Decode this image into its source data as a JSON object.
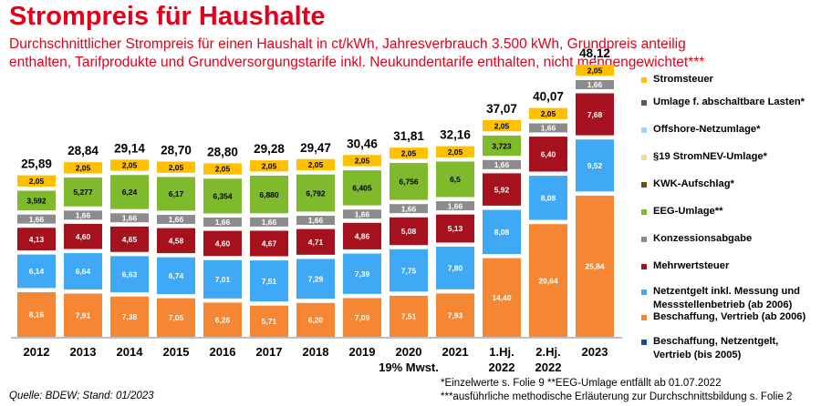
{
  "title": "Strompreis für Haushalte",
  "subtitle_line1": "Durchschnittlicher Strompreis für einen Haushalt in ct/kWh, Jahresverbrauch 3.500 kWh, Grundpreis anteilig",
  "subtitle_line2": "enthalten, Tarifprodukte und Grundversorgungstarife inkl. Neukundentarife enthalten, nicht mengengewichtet***",
  "source": "Quelle: BDEW; Stand: 01/2023",
  "footnote1": "*Einzelwerte s. Folie 9  **EEG-Umlage entfällt ab 01.07.2022",
  "footnote2": "***ausführliche methodische Erläuterung zur Durchschnittsbildung s. Folie 2",
  "chart_data": {
    "type": "bar",
    "stacked": true,
    "unit": "ct/kWh",
    "categories": [
      [
        "2012"
      ],
      [
        "2013"
      ],
      [
        "2014"
      ],
      [
        "2015"
      ],
      [
        "2016"
      ],
      [
        "2017"
      ],
      [
        "2018"
      ],
      [
        "2019"
      ],
      [
        "2020",
        "19% Mwst."
      ],
      [
        "2021"
      ],
      [
        "1.Hj.",
        "2022"
      ],
      [
        "2.Hj.",
        "2022"
      ],
      [
        "2023"
      ]
    ],
    "totals": [
      "25,89",
      "28,84",
      "29,14",
      "28,70",
      "28,80",
      "29,28",
      "29,47",
      "30,46",
      "31,81",
      "32,16",
      "37,07",
      "40,07",
      "48,12"
    ],
    "series": [
      {
        "key": "beschaffung_bis_2005",
        "name": "Beschaffung, Netzentgelt, Vertrieb (bis 2005)",
        "color": "#1f4e8c",
        "values": [
          null,
          null,
          null,
          null,
          null,
          null,
          null,
          null,
          null,
          null,
          null,
          null,
          null
        ]
      },
      {
        "key": "beschaffung",
        "name": "Beschaffung, Vertrieb (ab 2006)",
        "color": "#f58634",
        "text_color": "#ffffff",
        "values": [
          8.16,
          7.91,
          7.38,
          7.05,
          6.26,
          5.71,
          6.2,
          7.09,
          7.51,
          7.93,
          14.4,
          20.64,
          25.84
        ],
        "labels": [
          "8,16",
          "7,91",
          "7,38",
          "7,05",
          "6,26",
          "5,71",
          "6,20",
          "7,09",
          "7,51",
          "7,93",
          "14,40",
          "20,64",
          "25,84"
        ]
      },
      {
        "key": "netzentgelt",
        "name": "Netzentgelt inkl. Messung und Messstellenbetrieb (ab 2006)",
        "color": "#3fa9f5",
        "text_color": "#ffffff",
        "values": [
          6.14,
          6.64,
          6.63,
          6.74,
          7.01,
          7.51,
          7.29,
          7.39,
          7.75,
          7.8,
          8.08,
          8.08,
          9.52
        ],
        "labels": [
          "6,14",
          "6,64",
          "6,63",
          "6,74",
          "7,01",
          "7,51",
          "7,29",
          "7,39",
          "7,75",
          "7,80",
          "8,08",
          "8,08",
          "9,52"
        ]
      },
      {
        "key": "mwst",
        "name": "Mehrwertsteuer",
        "color": "#a5121e",
        "text_color": "#ffffff",
        "values": [
          4.13,
          4.6,
          4.65,
          4.58,
          4.6,
          4.67,
          4.71,
          4.86,
          5.08,
          5.13,
          5.92,
          6.4,
          7.68
        ],
        "labels": [
          "4,13",
          "4,60",
          "4,65",
          "4,58",
          "4,60",
          "4,67",
          "4,71",
          "4,86",
          "5,08",
          "5,13",
          "5,92",
          "6,40",
          "7,68"
        ]
      },
      {
        "key": "konzession",
        "name": "Konzessionsabgabe",
        "color": "#8c8c8c",
        "text_color": "#ffffff",
        "values": [
          1.66,
          1.66,
          1.66,
          1.66,
          1.66,
          1.66,
          1.66,
          1.66,
          1.66,
          1.66,
          1.66,
          1.66,
          1.66
        ],
        "labels": [
          "1,66",
          "1,66",
          "1,66",
          "1,66",
          "1,66",
          "1,66",
          "1,66",
          "1,66",
          "1,66",
          "1,66",
          "1,66",
          "1,66",
          "1,66"
        ]
      },
      {
        "key": "eeg",
        "name": "EEG-Umlage**",
        "color": "#7fba2c",
        "text_color": "#000000",
        "values": [
          3.592,
          5.277,
          6.24,
          6.17,
          6.354,
          6.88,
          6.792,
          6.405,
          6.756,
          6.5,
          3.723,
          null,
          null
        ],
        "labels": [
          "3,592",
          "5,277",
          "6,24",
          "6,17",
          "6,354",
          "6,880",
          "6,792",
          "6,405",
          "6,756",
          "6,5",
          "3,723",
          null,
          null
        ]
      },
      {
        "key": "kwk",
        "name": "KWK-Aufschlag*",
        "color": "#6b4e16",
        "values": [
          null,
          null,
          null,
          null,
          null,
          null,
          null,
          null,
          null,
          null,
          null,
          null,
          null
        ]
      },
      {
        "key": "p19",
        "name": "§19 StromNEV-Umlage*",
        "color": "#f8d99a",
        "values": [
          null,
          null,
          null,
          null,
          null,
          null,
          null,
          null,
          null,
          null,
          null,
          null,
          null
        ]
      },
      {
        "key": "offshore",
        "name": "Offshore-Netzumlage*",
        "color": "#9fd4f7",
        "values": [
          null,
          null,
          null,
          null,
          null,
          null,
          null,
          null,
          null,
          null,
          null,
          null,
          null
        ]
      },
      {
        "key": "abschaltbar",
        "name": "Umlage f. abschaltbare Lasten*",
        "color": "#595959",
        "values": [
          null,
          null,
          null,
          null,
          null,
          null,
          null,
          null,
          null,
          null,
          null,
          null,
          null
        ]
      },
      {
        "key": "stromsteuer",
        "name": "Stromsteuer",
        "color": "#ffc000",
        "text_color": "#000000",
        "values": [
          2.05,
          2.05,
          2.05,
          2.05,
          2.05,
          2.05,
          2.05,
          2.05,
          2.05,
          2.05,
          2.05,
          2.05,
          2.05
        ],
        "labels": [
          "2,05",
          "2,05",
          "2,05",
          "2,05",
          "2,05",
          "2,05",
          "2,05",
          "2,05",
          "2,05",
          "2,05",
          "2,05",
          "2,05",
          "2,05"
        ]
      }
    ],
    "legend_order": [
      "stromsteuer",
      "abschaltbar",
      "offshore",
      "p19",
      "kwk",
      "eeg",
      "konzession",
      "mwst",
      "netzentgelt",
      "beschaffung",
      "beschaffung_bis_2005"
    ],
    "legend_position": "right",
    "grid": false
  }
}
